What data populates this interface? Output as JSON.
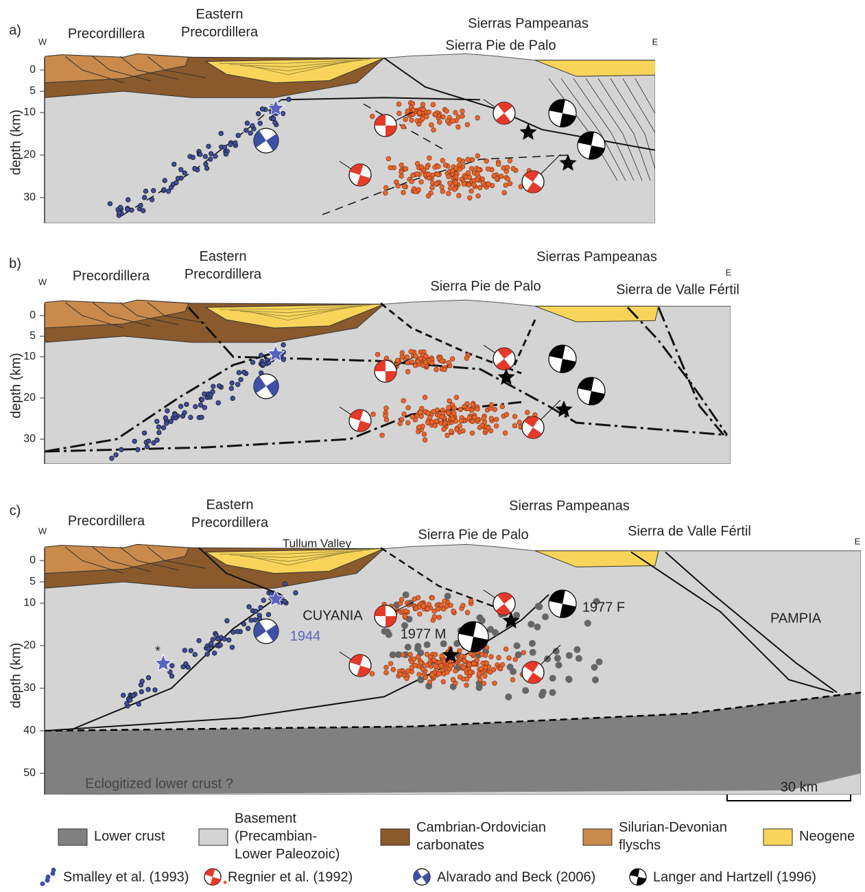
{
  "panels": [
    {
      "label": "a)",
      "west": "W",
      "east": "E",
      "axis_title": "depth (km)",
      "depth_ticks": [
        0,
        5,
        10,
        20,
        30
      ],
      "precordillera": "Precordillera",
      "eastern_precordillera": [
        "Eastern",
        "Precordillera"
      ],
      "sierras_pampeanas": "Sierras Pampeanas",
      "sierra_pie_de_palo": "Sierra Pie de Palo"
    },
    {
      "label": "b)",
      "west": "W",
      "east": "E",
      "axis_title": "depth (km)",
      "depth_ticks": [
        0,
        5,
        10,
        20,
        30
      ],
      "precordillera": "Precordillera",
      "eastern_precordillera": [
        "Eastern",
        "Precordillera"
      ],
      "sierras_pampeanas": "Sierras Pampeanas",
      "sierra_pie_de_palo": "Sierra Pie de Palo",
      "sierra_de_valle_fertil": "Sierra de Valle Fértil"
    },
    {
      "label": "c)",
      "west": "W",
      "east": "E",
      "axis_title": "depth (km)",
      "depth_ticks": [
        0,
        5,
        10,
        20,
        30,
        40,
        50
      ],
      "precordillera": "Precordillera",
      "eastern_precordillera": [
        "Eastern",
        "Precordillera"
      ],
      "sierras_pampeanas": "Sierras Pampeanas",
      "sierra_pie_de_palo": "Sierra Pie de Palo",
      "sierra_de_valle_fertil": "Sierra de Valle Fértil",
      "tullum_valley": "Tullum Valley",
      "cuyania": "CUYANIA",
      "event_1944": "1944",
      "event_1977_m": "1977 M",
      "event_1977_f": "1977 F",
      "pampia": "PAMPIA",
      "lower_crust_note": "Eclogitized lower crust ?",
      "scale_bar": "30 km",
      "asterisk": "*"
    }
  ],
  "legend": {
    "units": [
      {
        "label": [
          "Lower crust"
        ]
      },
      {
        "label": [
          "Basement",
          "(Precambian-",
          "Lower Paleozoic)"
        ]
      },
      {
        "label": [
          "Cambrian-Ordovician",
          "carbonates"
        ]
      },
      {
        "label": [
          "Silurian-Devonian",
          "flyschs"
        ]
      },
      {
        "label": [
          "Neogene"
        ]
      }
    ],
    "sources": [
      "Smalley et al. (1993)",
      "Regnier et al. (1992)",
      "Alvarado and Beck (2006)",
      "Langer and Hartzell (1996)"
    ]
  }
}
